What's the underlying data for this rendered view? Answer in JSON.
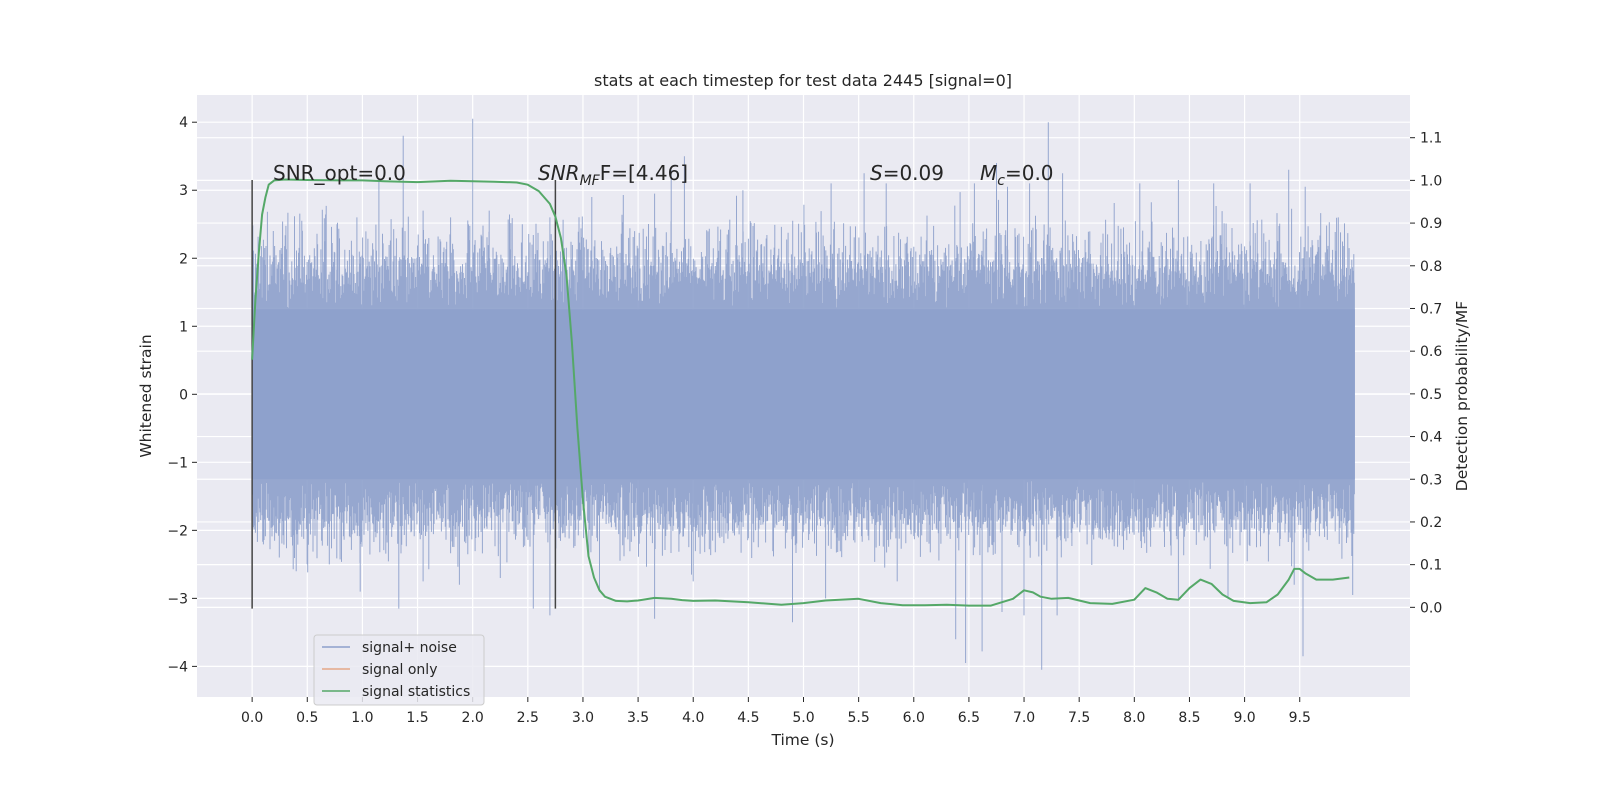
{
  "chart_data": {
    "type": "line",
    "title": "stats at each timestep for test data 2445 [signal=0]",
    "xlabel": "Time (s)",
    "ylabel_left": "Whitened strain",
    "ylabel_right": "Detection probability/MF",
    "xlim": [
      -0.5,
      10.5
    ],
    "ylim_left": [
      -4.45,
      4.4
    ],
    "ylim_right": [
      -0.21,
      1.2
    ],
    "x_ticks": [
      "0.0",
      "0.5",
      "1.0",
      "1.5",
      "2.0",
      "2.5",
      "3.0",
      "3.5",
      "4.0",
      "4.5",
      "5.0",
      "5.5",
      "6.0",
      "6.5",
      "7.0",
      "7.5",
      "8.0",
      "8.5",
      "9.0",
      "9.5"
    ],
    "y_ticks_left": [
      "4",
      "3",
      "2",
      "1",
      "0",
      "−1",
      "−2",
      "−3",
      "−4"
    ],
    "y_ticks_right": [
      "1.1",
      "1.0",
      "0.9",
      "0.8",
      "0.7",
      "0.6",
      "0.5",
      "0.4",
      "0.3",
      "0.2",
      "0.1",
      "0.0"
    ],
    "grid": true,
    "background": "#eaeaf2",
    "annotations": {
      "snr_opt": "SNR_opt=0.0",
      "snr_mf_italic": "SNR",
      "snr_mf_sub": "MF",
      "snr_mf_rest": "F=[4.46]",
      "s_italic": "S",
      "s_rest": "=0.09",
      "mc_italic": "M",
      "mc_sub": "c",
      "mc_rest": "=0.0"
    },
    "vertical_markers_x": [
      0.0,
      2.75
    ],
    "vertical_markers_ylim": [
      -3.15,
      3.15
    ],
    "series": [
      {
        "name": "signal+ noise",
        "color": "#8da0cb",
        "x_range": [
          0.0,
          10.0
        ],
        "band_halfwidth": 1.25,
        "peaks": [
          [
            0.45,
            2.55
          ],
          [
            0.77,
            2.5
          ],
          [
            0.95,
            2.6
          ],
          [
            1.15,
            3.15
          ],
          [
            1.37,
            3.8
          ],
          [
            1.55,
            2.7
          ],
          [
            1.8,
            2.6
          ],
          [
            2.0,
            4.05
          ],
          [
            2.15,
            2.7
          ],
          [
            2.45,
            2.5
          ],
          [
            2.7,
            2.6
          ],
          [
            3.08,
            2.9
          ],
          [
            3.65,
            2.95
          ],
          [
            3.8,
            3.3
          ],
          [
            3.92,
            3.5
          ],
          [
            4.45,
            3.0
          ],
          [
            5.25,
            3.1
          ],
          [
            5.55,
            3.25
          ],
          [
            5.75,
            3.1
          ],
          [
            6.55,
            3.1
          ],
          [
            6.75,
            3.4
          ],
          [
            6.85,
            3.05
          ],
          [
            7.05,
            3.1
          ],
          [
            7.22,
            4.0
          ],
          [
            7.35,
            3.25
          ],
          [
            8.05,
            3.1
          ],
          [
            8.4,
            3.15
          ],
          [
            8.72,
            3.1
          ],
          [
            9.05,
            3.1
          ],
          [
            9.4,
            3.3
          ],
          [
            9.55,
            3.05
          ],
          [
            9.85,
            2.6
          ]
        ],
        "troughs": [
          [
            0.4,
            -2.6
          ],
          [
            0.7,
            -2.5
          ],
          [
            0.98,
            -2.9
          ],
          [
            1.33,
            -3.15
          ],
          [
            1.55,
            -2.75
          ],
          [
            1.88,
            -2.8
          ],
          [
            2.25,
            -2.7
          ],
          [
            2.55,
            -3.15
          ],
          [
            2.7,
            -3.25
          ],
          [
            3.15,
            -2.9
          ],
          [
            3.65,
            -3.3
          ],
          [
            4.0,
            -2.75
          ],
          [
            4.9,
            -3.35
          ],
          [
            5.2,
            -3.0
          ],
          [
            5.85,
            -2.75
          ],
          [
            6.38,
            -3.6
          ],
          [
            6.47,
            -3.95
          ],
          [
            6.62,
            -3.78
          ],
          [
            6.8,
            -3.2
          ],
          [
            7.0,
            -3.25
          ],
          [
            7.16,
            -4.05
          ],
          [
            7.3,
            -3.25
          ],
          [
            8.4,
            -3.0
          ],
          [
            8.85,
            -3.0
          ],
          [
            9.45,
            -2.8
          ],
          [
            9.53,
            -3.85
          ],
          [
            9.98,
            -2.95
          ]
        ]
      },
      {
        "name": "signal only",
        "color": "#e5a888",
        "values": []
      },
      {
        "name": "signal statistics",
        "color": "#55a868",
        "x": [
          0.0,
          0.03,
          0.06,
          0.09,
          0.12,
          0.15,
          0.2,
          0.3,
          0.5,
          0.8,
          1.0,
          1.2,
          1.5,
          1.8,
          2.0,
          2.2,
          2.4,
          2.5,
          2.6,
          2.7,
          2.75,
          2.8,
          2.85,
          2.9,
          2.95,
          3.0,
          3.05,
          3.1,
          3.15,
          3.2,
          3.3,
          3.4,
          3.5,
          3.65,
          3.8,
          3.9,
          4.0,
          4.2,
          4.5,
          4.8,
          5.0,
          5.2,
          5.5,
          5.7,
          5.9,
          6.1,
          6.3,
          6.5,
          6.7,
          6.9,
          7.0,
          7.08,
          7.15,
          7.25,
          7.4,
          7.6,
          7.8,
          8.0,
          8.1,
          8.2,
          8.3,
          8.4,
          8.5,
          8.6,
          8.7,
          8.8,
          8.9,
          9.05,
          9.2,
          9.3,
          9.4,
          9.45,
          9.5,
          9.55,
          9.65,
          9.8,
          9.95
        ],
        "y": [
          0.58,
          0.72,
          0.83,
          0.92,
          0.96,
          0.99,
          1.0,
          1.002,
          1.001,
          1.0,
          1.0,
          0.998,
          0.996,
          0.999,
          0.998,
          0.997,
          0.995,
          0.99,
          0.975,
          0.945,
          0.915,
          0.865,
          0.78,
          0.62,
          0.42,
          0.25,
          0.12,
          0.07,
          0.04,
          0.025,
          0.015,
          0.014,
          0.016,
          0.022,
          0.02,
          0.017,
          0.015,
          0.016,
          0.012,
          0.006,
          0.01,
          0.016,
          0.02,
          0.01,
          0.005,
          0.005,
          0.006,
          0.004,
          0.004,
          0.02,
          0.04,
          0.035,
          0.025,
          0.02,
          0.022,
          0.01,
          0.008,
          0.018,
          0.045,
          0.035,
          0.02,
          0.018,
          0.045,
          0.065,
          0.055,
          0.03,
          0.015,
          0.01,
          0.012,
          0.03,
          0.065,
          0.09,
          0.09,
          0.08,
          0.065,
          0.065,
          0.07
        ]
      }
    ],
    "legend_position": "lower-left"
  }
}
